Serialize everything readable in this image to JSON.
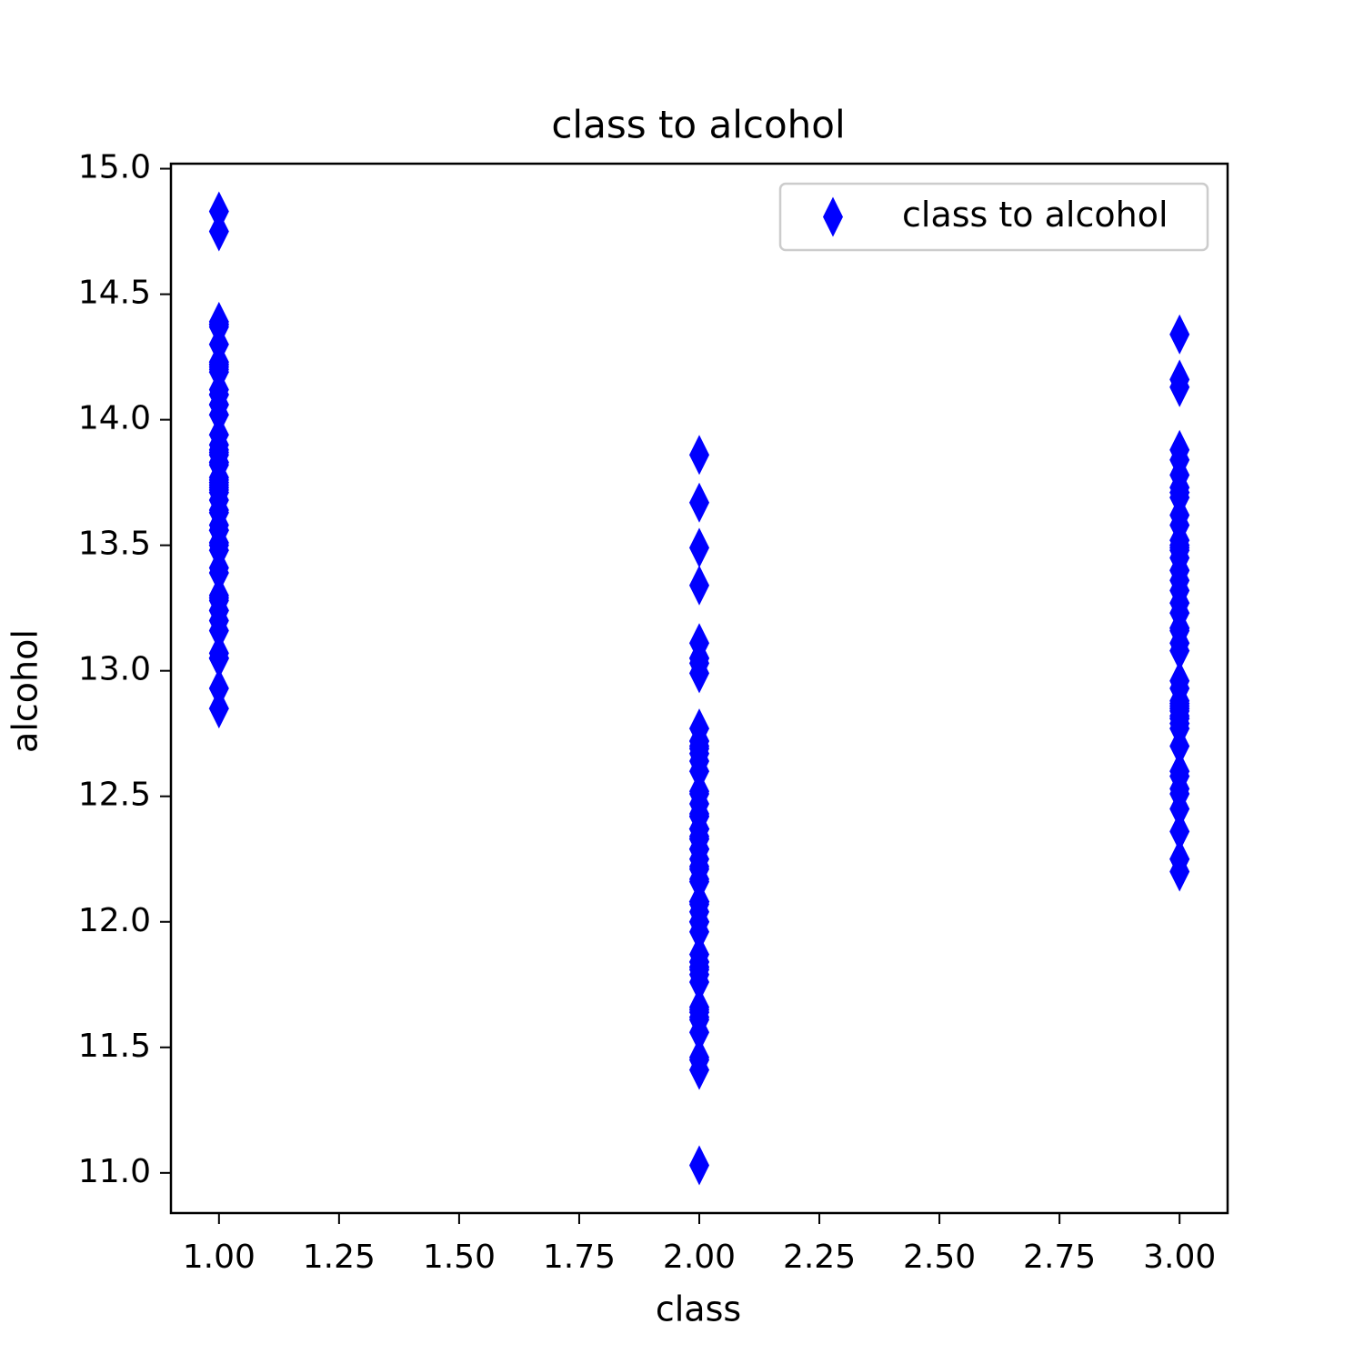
{
  "chart_data": {
    "type": "scatter",
    "title": "class to alcohol",
    "x_label": "class",
    "y_label": "alcohol",
    "xlim": [
      0.9,
      3.1
    ],
    "ylim": [
      10.84,
      15.02
    ],
    "xticks": [
      {
        "value": 1,
        "label": "1.00"
      },
      {
        "value": 1.25,
        "label": "1.25"
      },
      {
        "value": 1.5,
        "label": "1.50"
      },
      {
        "value": 1.75,
        "label": "1.75"
      },
      {
        "value": 2,
        "label": "2.00"
      },
      {
        "value": 2.25,
        "label": "2.25"
      },
      {
        "value": 2.5,
        "label": "2.50"
      },
      {
        "value": 2.75,
        "label": "2.75"
      },
      {
        "value": 3,
        "label": "3.00"
      }
    ],
    "yticks": [
      {
        "value": 11,
        "label": "11.0"
      },
      11.5,
      {
        "value": 12,
        "label": "12.0"
      },
      12.5,
      {
        "value": 13,
        "label": "13.0"
      },
      13.5,
      {
        "value": 14,
        "label": "14.0"
      },
      14.5,
      {
        "value": 15,
        "label": "15.0"
      }
    ],
    "grid": false,
    "legend": "upper right",
    "marker": "thin-diamond",
    "series": [
      {
        "name": "class to alcohol",
        "color": "#0000ff",
        "x": [
          1,
          1,
          1,
          1,
          1,
          1,
          1,
          1,
          1,
          1,
          1,
          1,
          1,
          1,
          1,
          1,
          1,
          1,
          1,
          1,
          1,
          1,
          1,
          1,
          1,
          1,
          1,
          1,
          1,
          1,
          1,
          1,
          1,
          1,
          1,
          1,
          1,
          1,
          1,
          1,
          1,
          1,
          1,
          1,
          1,
          1,
          1,
          1,
          1,
          1,
          1,
          1,
          1,
          1,
          1,
          1,
          1,
          1,
          1,
          2,
          2,
          2,
          2,
          2,
          2,
          2,
          2,
          2,
          2,
          2,
          2,
          2,
          2,
          2,
          2,
          2,
          2,
          2,
          2,
          2,
          2,
          2,
          2,
          2,
          2,
          2,
          2,
          2,
          2,
          2,
          2,
          2,
          2,
          2,
          2,
          2,
          2,
          2,
          2,
          2,
          2,
          2,
          2,
          2,
          2,
          2,
          2,
          2,
          2,
          2,
          2,
          2,
          2,
          2,
          2,
          2,
          2,
          2,
          2,
          2,
          2,
          2,
          2,
          2,
          2,
          2,
          2,
          2,
          2,
          2,
          3,
          3,
          3,
          3,
          3,
          3,
          3,
          3,
          3,
          3,
          3,
          3,
          3,
          3,
          3,
          3,
          3,
          3,
          3,
          3,
          3,
          3,
          3,
          3,
          3,
          3,
          3,
          3,
          3,
          3,
          3,
          3,
          3,
          3,
          3,
          3,
          3,
          3,
          3,
          3,
          3,
          3,
          3,
          3,
          3,
          3,
          3,
          3
        ],
        "values": [
          14.23,
          13.2,
          13.16,
          14.37,
          13.24,
          14.2,
          14.39,
          14.06,
          14.83,
          13.86,
          14.1,
          14.12,
          13.75,
          14.75,
          14.38,
          13.63,
          14.3,
          13.83,
          14.19,
          13.64,
          14.06,
          12.93,
          13.71,
          12.85,
          13.5,
          13.05,
          13.39,
          13.3,
          13.87,
          14.02,
          13.73,
          13.58,
          13.68,
          13.76,
          13.51,
          13.48,
          13.28,
          13.05,
          13.07,
          14.22,
          13.56,
          13.41,
          13.88,
          13.24,
          13.05,
          14.21,
          14.38,
          13.9,
          14.1,
          13.94,
          13.05,
          13.83,
          13.82,
          13.77,
          13.74,
          13.56,
          14.22,
          13.29,
          13.72,
          12.37,
          12.33,
          12.64,
          13.67,
          12.37,
          12.17,
          12.37,
          13.11,
          12.37,
          13.34,
          12.21,
          12.29,
          13.86,
          13.49,
          12.99,
          11.96,
          11.66,
          13.03,
          11.84,
          12.33,
          12.7,
          12,
          12.72,
          12.08,
          13.05,
          11.84,
          12.67,
          12.16,
          11.65,
          11.64,
          12.08,
          12.08,
          12,
          12.69,
          12.29,
          11.62,
          12.47,
          11.81,
          12.29,
          12.37,
          12.29,
          12.08,
          12.6,
          12.34,
          11.82,
          12.51,
          12.42,
          12.25,
          12.72,
          12.22,
          11.61,
          11.46,
          12.52,
          11.76,
          11.41,
          12.08,
          11.03,
          11.82,
          12.42,
          12.77,
          12,
          11.45,
          11.56,
          12.42,
          13.05,
          11.87,
          12.07,
          12.43,
          11.79,
          12.37,
          12.04,
          12.86,
          12.88,
          12.81,
          12.7,
          12.51,
          12.6,
          12.25,
          12.53,
          13.49,
          12.84,
          12.93,
          13.36,
          13.52,
          13.62,
          12.25,
          13.16,
          13.88,
          12.87,
          13.32,
          13.08,
          13.5,
          12.79,
          13.11,
          13.23,
          12.58,
          13.17,
          13.84,
          12.45,
          14.34,
          13.48,
          12.36,
          13.69,
          12.85,
          12.96,
          13.78,
          13.73,
          13.45,
          12.82,
          13.58,
          13.4,
          12.2,
          12.77,
          14.16,
          13.71,
          13.4,
          13.27,
          13.17,
          14.13
        ]
      }
    ]
  }
}
